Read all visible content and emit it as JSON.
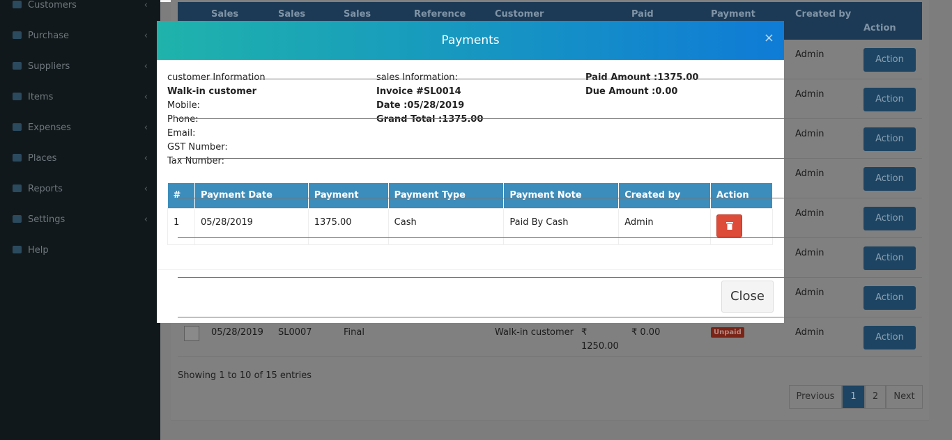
{
  "sidebar": {
    "items": [
      "Customers",
      "Purchase",
      "Suppliers",
      "Items",
      "Expenses",
      "Places",
      "Reports",
      "Settings",
      "Help"
    ]
  },
  "background_table": {
    "headers": [
      "Sales",
      "Sales",
      "Sales",
      "Reference",
      "Customer",
      "Paid",
      "Payment",
      "Created by",
      "Action"
    ],
    "rows": [
      {
        "created_by": "Admin",
        "action": "Action"
      },
      {
        "created_by": "Admin",
        "action": "Action"
      },
      {
        "created_by": "Admin",
        "action": "Action"
      },
      {
        "created_by": "Admin",
        "action": "Action"
      },
      {
        "created_by": "Admin",
        "action": "Action"
      },
      {
        "created_by": "Admin",
        "action": "Action"
      },
      {
        "created_by": "Admin",
        "action": "Action"
      },
      {
        "date": "05/28/2019",
        "code": "SL0007",
        "status": "Final",
        "customer": "Walk-in customer",
        "total": "₹ 1250.00",
        "paid": "₹ 0.00",
        "payment": "Unpaid",
        "created_by": "Admin",
        "action": "Action"
      }
    ],
    "info": "Showing 1 to 10 of 15 entries",
    "pagination": [
      "Previous",
      "1",
      "2",
      "Next"
    ]
  },
  "modal": {
    "title": "Payments",
    "close_icon": "×",
    "customer": {
      "heading": "customer Information",
      "name": "Walk-in customer",
      "mobile": "Mobile:",
      "phone": "Phone:",
      "email": "Email:",
      "gst": "GST Number:",
      "tax": "Tax Number:"
    },
    "sales": {
      "heading": "sales Information:",
      "invoice": "Invoice #SL0014",
      "date": "Date :05/28/2019",
      "grand_total": "Grand Total :1375.00"
    },
    "amounts": {
      "paid": "Paid Amount :1375.00",
      "due": "Due Amount :0.00"
    },
    "table": {
      "headers": [
        "#",
        "Payment Date",
        "Payment",
        "Payment Type",
        "Payment Note",
        "Created by",
        "Action"
      ],
      "rows": [
        [
          "1",
          "05/28/2019",
          "1375.00",
          "Cash",
          "Paid By Cash",
          "Admin"
        ]
      ]
    },
    "close_button": "Close"
  }
}
